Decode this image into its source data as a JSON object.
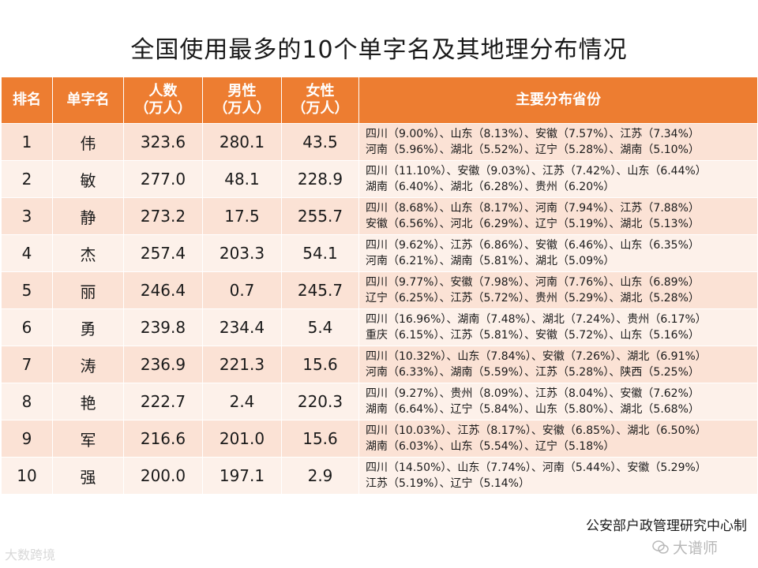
{
  "title": "全国使用最多的10个单字名及其地理分布情况",
  "headers": {
    "rank": "排名",
    "name": "单字名",
    "total": [
      "人数",
      "（万人）"
    ],
    "male": [
      "男性",
      "（万人）"
    ],
    "female": [
      "女性",
      "（万人）"
    ],
    "provinces": "主要分布省份"
  },
  "rows": [
    {
      "rank": "1",
      "name": "伟",
      "total": "323.6",
      "male": "280.1",
      "female": "43.5",
      "provinces": [
        "四川（9.00%）、山东（8.13%）、安徽（7.57%）、江苏（7.34%）",
        "河南（5.96%）、湖北（5.52%）、辽宁（5.28%）、湖南（5.10%）"
      ]
    },
    {
      "rank": "2",
      "name": "敏",
      "total": "277.0",
      "male": "48.1",
      "female": "228.9",
      "provinces": [
        "四川（11.10%）、安徽（9.03%）、江苏（7.42%）、山东（6.44%）",
        "湖南（6.40%）、湖北（6.28%）、贵州（6.20%）"
      ]
    },
    {
      "rank": "3",
      "name": "静",
      "total": "273.2",
      "male": "17.5",
      "female": "255.7",
      "provinces": [
        "四川（8.68%）、山东（8.17%）、河南（7.94%）、江苏（7.88%）",
        "安徽（6.56%）、河北（6.29%）、辽宁（5.19%）、湖北（5.13%）"
      ]
    },
    {
      "rank": "4",
      "name": "杰",
      "total": "257.4",
      "male": "203.3",
      "female": "54.1",
      "provinces": [
        "四川（9.62%）、江苏（6.86%）、安徽（6.46%）、山东（6.35%）",
        "河南（6.21%）、湖南（5.81%）、湖北（5.09%）"
      ]
    },
    {
      "rank": "5",
      "name": "丽",
      "total": "246.4",
      "male": "0.7",
      "female": "245.7",
      "provinces": [
        "四川（9.77%）、安徽（7.98%）、河南（7.76%）、山东（6.89%）",
        "辽宁（6.25%）、江苏（5.72%）、贵州（5.29%）、湖北（5.28%）"
      ]
    },
    {
      "rank": "6",
      "name": "勇",
      "total": "239.8",
      "male": "234.4",
      "female": "5.4",
      "provinces": [
        "四川（16.96%）、湖南（7.48%）、湖北（7.24%）、贵州（6.17%）",
        "重庆（6.15%）、江苏（5.81%）、安徽（5.72%）、山东（5.16%）"
      ]
    },
    {
      "rank": "7",
      "name": "涛",
      "total": "236.9",
      "male": "221.3",
      "female": "15.6",
      "provinces": [
        "四川（10.32%）、山东（7.84%）、安徽（7.26%）、湖北（6.91%）",
        "河南（6.33%）、湖南（5.59%）、江苏（5.28%）、陕西（5.25%）"
      ]
    },
    {
      "rank": "8",
      "name": "艳",
      "total": "222.7",
      "male": "2.4",
      "female": "220.3",
      "provinces": [
        "四川（9.27%）、贵州（8.09%）、江苏（8.04%）、安徽（7.62%）",
        "湖南（6.64%）、辽宁（5.84%）、山东（5.80%）、湖北（5.68%）"
      ]
    },
    {
      "rank": "9",
      "name": "军",
      "total": "216.6",
      "male": "201.0",
      "female": "15.6",
      "provinces": [
        "四川（10.03%）、江苏（8.17%）、安徽（6.85%）、湖北（6.50%）",
        "湖南（6.03%）、山东（5.54%）、辽宁（5.18%）"
      ]
    },
    {
      "rank": "10",
      "name": "强",
      "total": "200.0",
      "male": "197.1",
      "female": "2.9",
      "provinces": [
        "四川（14.50%）、山东（7.74%）、河南（5.44%）、安徽（5.29%）",
        "江苏（5.19%）、辽宁（5.14%）"
      ]
    }
  ],
  "source": "公安部户政管理研究中心制",
  "watermarks": {
    "left": "大数跨境",
    "right": "大谱师"
  }
}
